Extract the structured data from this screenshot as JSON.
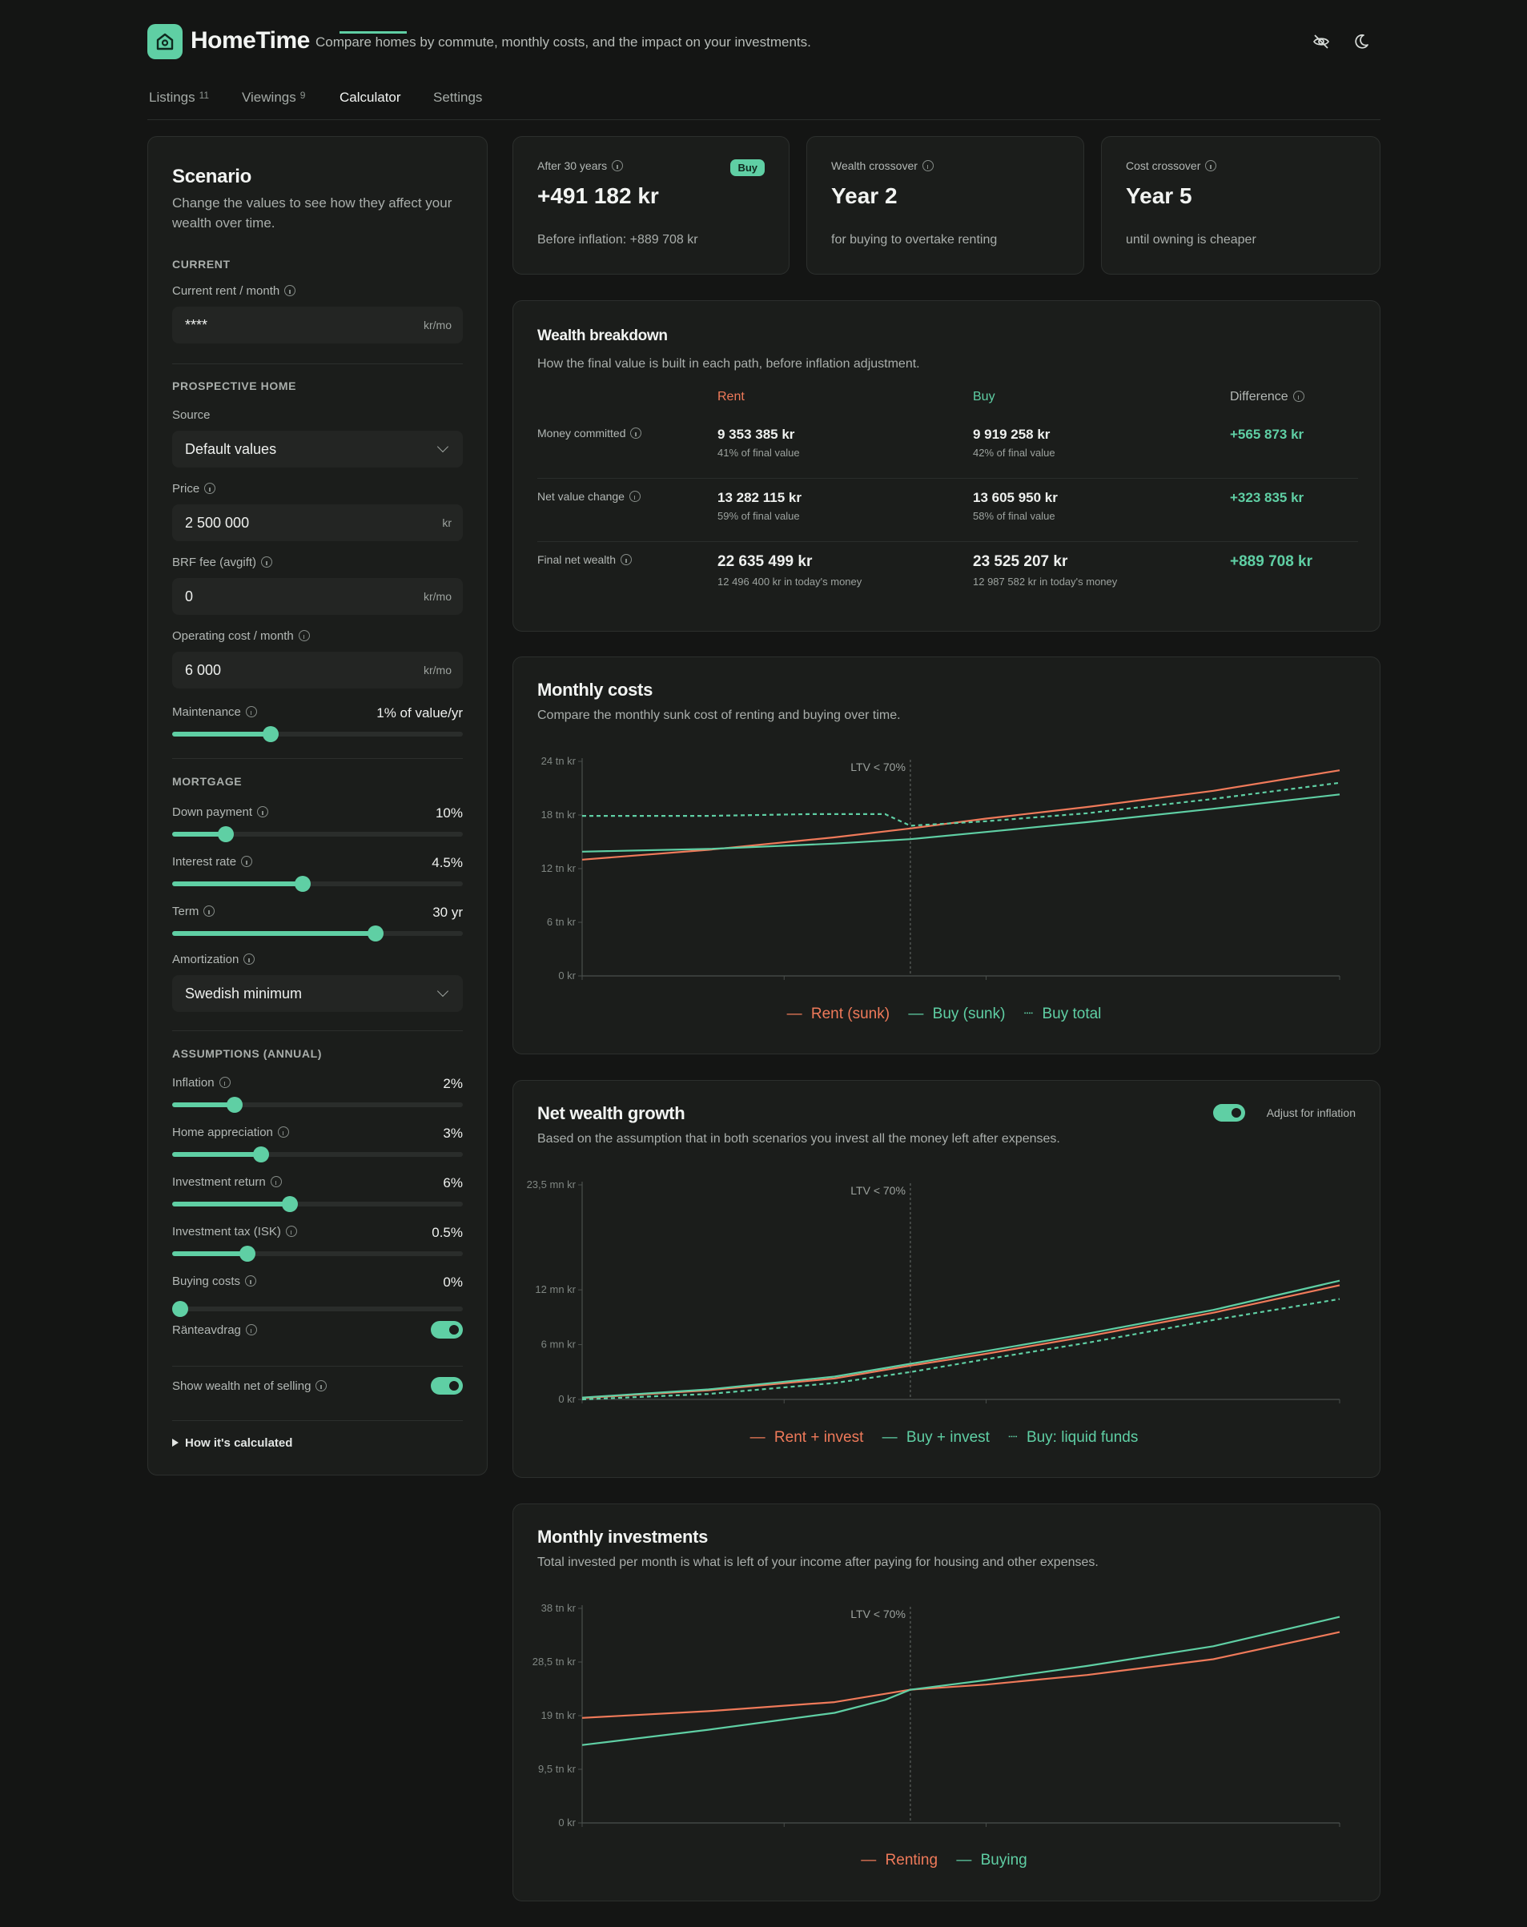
{
  "app": {
    "name": "HomeTime",
    "tagline": "Compare homes by commute, monthly costs, and the impact on your investments.",
    "icons": [
      "home-logo-icon",
      "eye-off-icon",
      "moon-icon"
    ]
  },
  "tabs": [
    {
      "label": "Listings",
      "count": "11"
    },
    {
      "label": "Viewings",
      "count": "9"
    },
    {
      "label": "Calculator",
      "count": "",
      "active": true
    },
    {
      "label": "Settings",
      "count": ""
    }
  ],
  "sidebar": {
    "title": "Scenario",
    "description": "Change the values to see how they affect your wealth over time.",
    "current": {
      "heading": "CURRENT",
      "rent_label": "Current rent / month",
      "rent_value": "****",
      "rent_unit": "kr/mo"
    },
    "prospective": {
      "heading": "PROSPECTIVE HOME",
      "source_label": "Source",
      "source_value": "Default values",
      "price_label": "Price",
      "price_value": "2 500 000",
      "price_unit": "kr",
      "brf_label": "BRF fee (avgift)",
      "brf_value": "0",
      "brf_unit": "kr/mo",
      "opcost_label": "Operating cost / month",
      "opcost_value": "6 000",
      "opcost_unit": "kr/mo",
      "maintenance_label": "Maintenance",
      "maintenance_value": "1% of value/yr",
      "maintenance_level": 0.34
    },
    "mortgage": {
      "heading": "MORTGAGE",
      "down_label": "Down payment",
      "down_value": "10%",
      "down_level": 0.185,
      "interest_label": "Interest rate",
      "interest_value": "4.5%",
      "interest_level": 0.45,
      "term_label": "Term",
      "term_value": "30 yr",
      "term_level": 0.7,
      "amort_label": "Amortization",
      "amort_value": "Swedish minimum"
    },
    "assumptions": {
      "heading": "ASSUMPTIONS (ANNUAL)",
      "inflation_label": "Inflation",
      "inflation_value": "2%",
      "inflation_level": 0.215,
      "appreciation_label": "Home appreciation",
      "appreciation_value": "3%",
      "appreciation_level": 0.305,
      "return_label": "Investment return",
      "return_value": "6%",
      "return_level": 0.405,
      "tax_label": "Investment tax (ISK)",
      "tax_value": "0.5%",
      "tax_level": 0.26,
      "buying_label": "Buying costs",
      "buying_value": "0%",
      "buying_level": 0.0,
      "ranteavdrag_label": "Ränteavdrag",
      "ranteavdrag_on": true
    },
    "net_selling_label": "Show wealth net of selling",
    "net_selling_on": true,
    "details_label": "How it's calculated"
  },
  "stats": [
    {
      "label": "After 30 years",
      "big": "+491 182 kr",
      "sub": "Before inflation: +889 708 kr",
      "badge": "Buy"
    },
    {
      "label": "Wealth crossover",
      "big": "Year 2",
      "sub": "for buying to overtake renting"
    },
    {
      "label": "Cost crossover",
      "big": "Year 5",
      "sub": "until owning is cheaper"
    }
  ],
  "breakdown": {
    "title": "Wealth breakdown",
    "subtitle": "How the final value is built in each path, before inflation adjustment.",
    "headers": {
      "rent": "Rent",
      "buy": "Buy",
      "diff": "Difference"
    },
    "rows": [
      {
        "label": "Money committed",
        "rent": "9 353 385 kr",
        "rent_sub": "41% of final value",
        "buy": "9 919 258 kr",
        "buy_sub": "42% of final value",
        "diff": "+565 873 kr"
      },
      {
        "label": "Net value change",
        "rent": "13 282 115 kr",
        "rent_sub": "59% of final value",
        "buy": "13 605 950 kr",
        "buy_sub": "58% of final value",
        "diff": "+323 835 kr"
      },
      {
        "label": "Final net wealth",
        "rent": "22 635 499 kr",
        "rent_sub": "12 496 400 kr in today's money",
        "buy": "23 525 207 kr",
        "buy_sub": "12 987 582 kr in today's money",
        "diff": "+889 708 kr"
      }
    ]
  },
  "colors": {
    "rent": "#ef7a5a",
    "buy": "#5fcfa4",
    "accent": "#5fcfa4"
  },
  "chart_data": [
    {
      "type": "line",
      "title": "Monthly costs",
      "subtitle": "Compare the monthly sunk cost of renting and buying over time.",
      "xlim": [
        0,
        30
      ],
      "ylim": [
        0,
        24000
      ],
      "x_ticks": [
        "0",
        "8",
        "16",
        "30"
      ],
      "y_ticks": [
        {
          "v": 0,
          "label": "0 kr"
        },
        {
          "v": 6000,
          "label": "6 tn kr"
        },
        {
          "v": 12000,
          "label": "12 tn kr"
        },
        {
          "v": 18000,
          "label": "18 tn kr"
        },
        {
          "v": 24000,
          "label": "24 tn kr"
        }
      ],
      "marker": {
        "x": 13,
        "label": "LTV < 70%"
      },
      "series": [
        {
          "name": "Rent (sunk)",
          "color": "#ef7a5a",
          "dashed": false,
          "points": [
            [
              0,
              13000
            ],
            [
              5,
              14100
            ],
            [
              10,
              15500
            ],
            [
              13,
              16500
            ],
            [
              16,
              17600
            ],
            [
              20,
              18900
            ],
            [
              25,
              20700
            ],
            [
              30,
              23000
            ]
          ]
        },
        {
          "name": "Buy (sunk)",
          "color": "#5fcfa4",
          "dashed": false,
          "points": [
            [
              0,
              13900
            ],
            [
              5,
              14200
            ],
            [
              10,
              14800
            ],
            [
              13,
              15300
            ],
            [
              16,
              16100
            ],
            [
              20,
              17200
            ],
            [
              25,
              18700
            ],
            [
              30,
              20300
            ]
          ]
        },
        {
          "name": "Buy total",
          "color": "#5fcfa4",
          "dashed": true,
          "points": [
            [
              0,
              17900
            ],
            [
              5,
              17900
            ],
            [
              9,
              18100
            ],
            [
              12,
              18100
            ],
            [
              13,
              16800
            ],
            [
              16,
              17300
            ],
            [
              20,
              18200
            ],
            [
              25,
              19800
            ],
            [
              30,
              21600
            ]
          ]
        }
      ],
      "legend": [
        "Rent (sunk)",
        "Buy (sunk)",
        "Buy total"
      ]
    },
    {
      "type": "line",
      "title": "Net wealth growth",
      "subtitle": "Based on the assumption that in both scenarios you invest all the money left after expenses.",
      "toggle_label": "Adjust for inflation",
      "toggle_on": true,
      "xlim": [
        0,
        30
      ],
      "ylim": [
        0,
        23500000
      ],
      "x_ticks": [
        "0",
        "8",
        "16",
        "30"
      ],
      "y_ticks": [
        {
          "v": 0,
          "label": "0 kr"
        },
        {
          "v": 6000000,
          "label": "6 mn kr"
        },
        {
          "v": 12000000,
          "label": "12 mn kr"
        },
        {
          "v": 23500000,
          "label": "23,5 mn kr"
        }
      ],
      "marker": {
        "x": 13,
        "label": "LTV < 70%"
      },
      "series": [
        {
          "name": "Rent + invest",
          "color": "#ef7a5a",
          "dashed": false,
          "points": [
            [
              0,
              150000
            ],
            [
              5,
              1000000
            ],
            [
              10,
              2300000
            ],
            [
              13,
              3700000
            ],
            [
              16,
              5000000
            ],
            [
              20,
              6900000
            ],
            [
              25,
              9500000
            ],
            [
              30,
              12500000
            ]
          ]
        },
        {
          "name": "Buy + invest",
          "color": "#5fcfa4",
          "dashed": false,
          "points": [
            [
              0,
              200000
            ],
            [
              5,
              1100000
            ],
            [
              10,
              2500000
            ],
            [
              13,
              3900000
            ],
            [
              16,
              5300000
            ],
            [
              20,
              7200000
            ],
            [
              25,
              9800000
            ],
            [
              30,
              13000000
            ]
          ]
        },
        {
          "name": "Buy: liquid funds",
          "color": "#5fcfa4",
          "dashed": true,
          "points": [
            [
              0,
              0
            ],
            [
              5,
              600000
            ],
            [
              10,
              1800000
            ],
            [
              13,
              3000000
            ],
            [
              16,
              4400000
            ],
            [
              20,
              6200000
            ],
            [
              25,
              8700000
            ],
            [
              30,
              11000000
            ]
          ]
        }
      ],
      "legend": [
        "Rent + invest",
        "Buy + invest",
        "Buy: liquid funds"
      ]
    },
    {
      "type": "line",
      "title": "Monthly investments",
      "subtitle": "Total invested per month is what is left of your income after paying for housing and other expenses.",
      "xlim": [
        0,
        30
      ],
      "ylim": [
        0,
        38000
      ],
      "x_ticks": [
        "0",
        "8",
        "16",
        "30"
      ],
      "y_ticks": [
        {
          "v": 0,
          "label": "0 kr"
        },
        {
          "v": 9500,
          "label": "9,5 tn kr"
        },
        {
          "v": 19000,
          "label": "19 tn kr"
        },
        {
          "v": 28500,
          "label": "28,5 tn kr"
        },
        {
          "v": 38000,
          "label": "38 tn kr"
        }
      ],
      "marker": {
        "x": 13,
        "label": "LTV < 70%"
      },
      "series": [
        {
          "name": "Renting",
          "color": "#ef7a5a",
          "dashed": false,
          "points": [
            [
              0,
              18600
            ],
            [
              5,
              19800
            ],
            [
              10,
              21400
            ],
            [
              13,
              23600
            ],
            [
              16,
              24500
            ],
            [
              20,
              26200
            ],
            [
              25,
              29000
            ],
            [
              30,
              33800
            ]
          ]
        },
        {
          "name": "Buying",
          "color": "#5fcfa4",
          "dashed": false,
          "points": [
            [
              0,
              13800
            ],
            [
              5,
              16500
            ],
            [
              10,
              19500
            ],
            [
              12,
              21800
            ],
            [
              13,
              23600
            ],
            [
              16,
              25300
            ],
            [
              20,
              27800
            ],
            [
              25,
              31300
            ],
            [
              30,
              36500
            ]
          ]
        }
      ],
      "legend": [
        "Renting",
        "Buying"
      ]
    }
  ]
}
